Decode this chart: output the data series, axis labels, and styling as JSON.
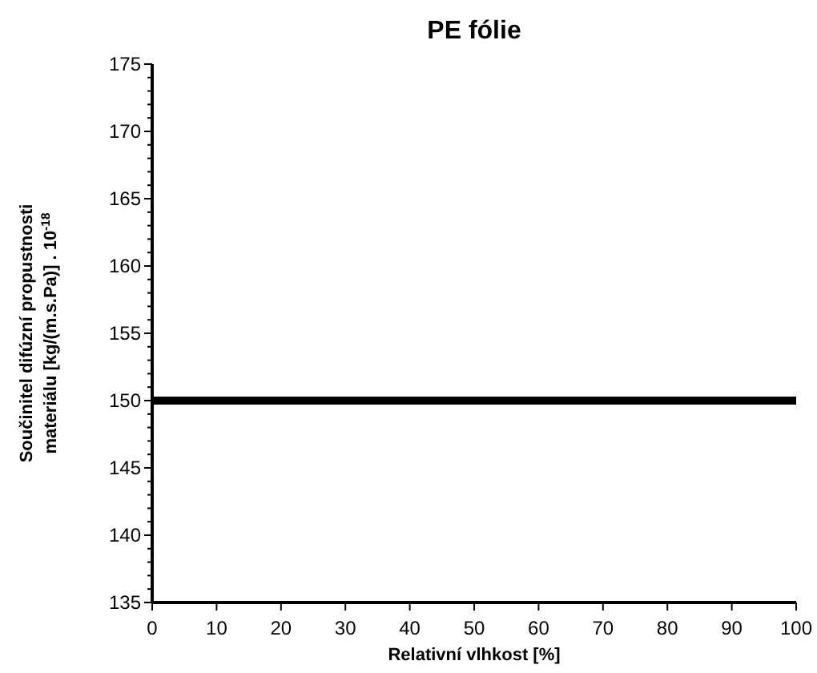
{
  "chart_data": {
    "type": "line",
    "title": "PE fólie",
    "xlabel": "Relativní vlhkost [%]",
    "ylabel": "Součinitel difúzní propustnosti materiálu  [kg/(m.s.Pa)] . 10$^{-18}$",
    "x": [
      0,
      100
    ],
    "series": [
      {
        "color": "#000000",
        "values": [
          150,
          150
        ]
      }
    ],
    "xlim": [
      0,
      100
    ],
    "xticks": [
      0,
      10,
      20,
      30,
      40,
      50,
      60,
      70,
      80,
      90,
      100
    ],
    "ylim": [
      135,
      175
    ],
    "yticks": [
      135,
      {
        "value": 136,
        "label": null
      },
      {
        "value": 137,
        "label": null
      },
      {
        "value": 138,
        "label": null
      },
      {
        "value": 139,
        "label": null
      },
      140,
      {
        "value": 141,
        "label": null
      },
      {
        "value": 142,
        "label": null
      },
      {
        "value": 143,
        "label": null
      },
      {
        "value": 144,
        "label": null
      },
      145,
      {
        "value": 146,
        "label": null
      },
      {
        "value": 147,
        "label": null
      },
      {
        "value": 148,
        "label": null
      },
      {
        "value": 149,
        "label": null
      },
      150,
      {
        "value": 151,
        "label": null
      },
      {
        "value": 152,
        "label": null
      },
      {
        "value": 153,
        "label": null
      },
      {
        "value": 154,
        "label": null
      },
      155,
      {
        "value": 156,
        "label": null
      },
      {
        "value": 157,
        "label": null
      },
      {
        "value": 158,
        "label": null
      },
      {
        "value": 159,
        "label": null
      },
      160,
      {
        "value": 161,
        "label": null
      },
      {
        "value": 162,
        "label": null
      },
      {
        "value": 163,
        "label": null
      },
      {
        "value": 164,
        "label": null
      },
      165,
      {
        "value": 166,
        "label": null
      },
      {
        "value": 167,
        "label": null
      },
      {
        "value": 168,
        "label": null
      },
      {
        "value": 169,
        "label": null
      },
      170,
      {
        "value": 171,
        "label": null
      },
      {
        "value": 172,
        "label": null
      },
      {
        "value": 173,
        "label": null
      },
      {
        "value": 174,
        "label": null
      },
      175
    ],
    "grid": false,
    "marker": "none",
    "line_style": "solid"
  }
}
